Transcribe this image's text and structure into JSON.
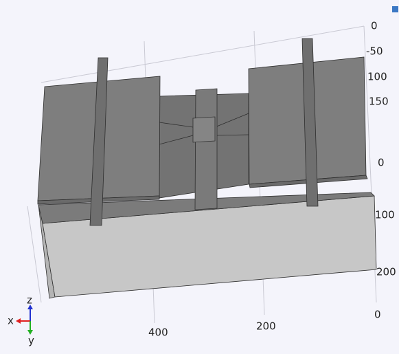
{
  "axis_labels": {
    "right": [
      "0",
      "-50",
      "100",
      "150",
      "0",
      "100",
      "200",
      "0"
    ],
    "bottom": [
      "200",
      "400"
    ]
  },
  "triad": {
    "x": "x",
    "y": "y",
    "z": "z"
  }
}
